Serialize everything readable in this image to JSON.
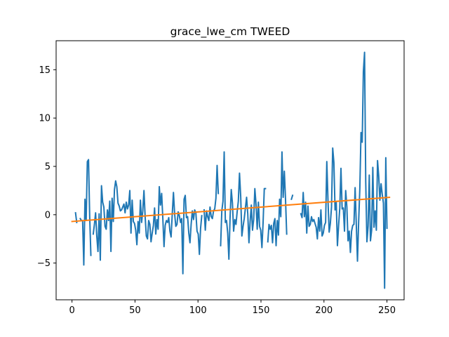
{
  "chart_data": {
    "type": "line",
    "title": "grace_lwe_cm TWEED",
    "xlabel": "",
    "ylabel": "",
    "xlim": [
      -12.6,
      263.6
    ],
    "ylim": [
      -8.8,
      18.0
    ],
    "xticks": [
      0,
      50,
      100,
      150,
      200,
      250
    ],
    "yticks": [
      -5,
      0,
      5,
      10,
      15
    ],
    "grid": false,
    "series": [
      {
        "color": "#1f77b4",
        "values": [
          [
            3,
            0.2
          ],
          [
            4,
            -0.8
          ],
          [
            5,
            null
          ],
          [
            6,
            null
          ],
          [
            7,
            -0.4
          ],
          [
            8,
            -0.6
          ],
          [
            9,
            -0.6
          ],
          [
            10,
            -5.2
          ],
          [
            11,
            1.6
          ],
          [
            12,
            -0.6
          ],
          [
            13,
            5.5
          ],
          [
            14,
            5.7
          ],
          [
            15,
            -0.2
          ],
          [
            16,
            -4.2
          ],
          [
            17,
            null
          ],
          [
            18,
            -2.0
          ],
          [
            19,
            -1.0
          ],
          [
            20,
            0.2
          ],
          [
            21,
            -2.2
          ],
          [
            22,
            -3.8
          ],
          [
            23,
            0.1
          ],
          [
            24,
            -4.7
          ],
          [
            25,
            3.0
          ],
          [
            26,
            1.3
          ],
          [
            27,
            0.8
          ],
          [
            28,
            -1.2
          ],
          [
            29,
            -1.5
          ],
          [
            30,
            0.5
          ],
          [
            31,
            -0.6
          ],
          [
            32,
            1.4
          ],
          [
            33,
            -3.8
          ],
          [
            34,
            1.7
          ],
          [
            35,
            -0.7
          ],
          [
            36,
            2.6
          ],
          [
            37,
            3.5
          ],
          [
            38,
            2.9
          ],
          [
            39,
            1.2
          ],
          [
            40,
            0.9
          ],
          [
            41,
            0.4
          ],
          [
            42,
            0.5
          ],
          [
            43,
            0.8
          ],
          [
            44,
            1.1
          ],
          [
            45,
            0.2
          ],
          [
            46,
            1.3
          ],
          [
            47,
            0.6
          ],
          [
            48,
            1.0
          ],
          [
            49,
            2.5
          ],
          [
            50,
            -1.9
          ],
          [
            51,
            1.5
          ],
          [
            52,
            -0.7
          ],
          [
            53,
            -0.9
          ],
          [
            54,
            -1.6
          ],
          [
            55,
            -3.1
          ],
          [
            56,
            -0.7
          ],
          [
            57,
            -1.9
          ],
          [
            58,
            1.5
          ],
          [
            59,
            -0.8
          ],
          [
            60,
            0.4
          ],
          [
            61,
            2.5
          ],
          [
            62,
            -0.2
          ],
          [
            63,
            -2.2
          ],
          [
            64,
            -2.5
          ],
          [
            65,
            -0.6
          ],
          [
            66,
            -1.0
          ],
          [
            67,
            -2.8
          ],
          [
            68,
            -1.9
          ],
          [
            69,
            -1.1
          ],
          [
            70,
            0.7
          ],
          [
            71,
            -2.0
          ],
          [
            72,
            -0.5
          ],
          [
            73,
            -1.5
          ],
          [
            74,
            2.9
          ],
          [
            75,
            1.0
          ],
          [
            76,
            2.2
          ],
          [
            77,
            -0.4
          ],
          [
            78,
            -3.3
          ],
          [
            79,
            -1.1
          ],
          [
            80,
            -0.6
          ],
          [
            81,
            -0.8
          ],
          [
            82,
            -0.3
          ],
          [
            83,
            -1.7
          ],
          [
            84,
            -2.3
          ],
          [
            85,
            0.1
          ],
          [
            86,
            2.3
          ],
          [
            87,
            0.1
          ],
          [
            88,
            -1.2
          ],
          [
            89,
            -1.0
          ],
          [
            90,
            0.3
          ],
          [
            91,
            -0.1
          ],
          [
            92,
            -0.8
          ],
          [
            93,
            -0.4
          ],
          [
            94,
            -6.1
          ],
          [
            95,
            1.6
          ],
          [
            96,
            2.0
          ],
          [
            97,
            -0.3
          ],
          [
            98,
            -0.2
          ],
          [
            99,
            -1.9
          ],
          [
            100,
            -2.9
          ],
          [
            101,
            -1.0
          ],
          [
            102,
            0.4
          ],
          [
            103,
            -0.5
          ],
          [
            104,
            0.5
          ],
          [
            105,
            0.2
          ],
          [
            106,
            -1.7
          ],
          [
            107,
            -2.0
          ],
          [
            108,
            -4.1
          ],
          [
            109,
            -1.4
          ],
          [
            110,
            -0.1
          ],
          [
            111,
            null
          ],
          [
            112,
            0.5
          ],
          [
            113,
            -1.6
          ],
          [
            114,
            0.4
          ],
          [
            115,
            -0.2
          ],
          [
            116,
            -0.6
          ],
          [
            117,
            0.8
          ],
          [
            118,
            -0.2
          ],
          [
            119,
            -0.4
          ],
          [
            120,
            0.4
          ],
          [
            121,
            0.6
          ],
          [
            122,
            1.7
          ],
          [
            123,
            5.1
          ],
          [
            124,
            2.2
          ],
          [
            125,
            null
          ],
          [
            126,
            -3.2
          ],
          [
            127,
            0.4
          ],
          [
            128,
            1.4
          ],
          [
            129,
            6.5
          ],
          [
            130,
            -0.8
          ],
          [
            131,
            -0.6
          ],
          [
            132,
            -1.9
          ],
          [
            133,
            -4.6
          ],
          [
            134,
            -0.3
          ],
          [
            135,
            2.6
          ],
          [
            136,
            1.2
          ],
          [
            137,
            -1.7
          ],
          [
            138,
            -0.5
          ],
          [
            139,
            -1.0
          ],
          [
            140,
            0.3
          ],
          [
            141,
            1.4
          ],
          [
            142,
            4.3
          ],
          [
            143,
            1.9
          ],
          [
            144,
            -2.2
          ],
          [
            145,
            -1.2
          ],
          [
            146,
            -0.4
          ],
          [
            147,
            0.7
          ],
          [
            148,
            1.8
          ],
          [
            149,
            0.1
          ],
          [
            150,
            -2.9
          ],
          [
            151,
            -0.7
          ],
          [
            152,
            1.0
          ],
          [
            153,
            -1.6
          ],
          [
            154,
            -0.5
          ],
          [
            155,
            2.7
          ],
          [
            156,
            1.1
          ],
          [
            157,
            -1.5
          ],
          [
            158,
            1.3
          ],
          [
            159,
            -1.2
          ],
          [
            160,
            -1.6
          ],
          [
            161,
            -3.4
          ],
          [
            162,
            -0.8
          ],
          [
            163,
            2.7
          ],
          [
            164,
            2.7
          ],
          [
            165,
            null
          ],
          [
            166,
            -2.8
          ],
          [
            167,
            -1.0
          ],
          [
            168,
            -1.5
          ],
          [
            169,
            -1.1
          ],
          [
            170,
            -2.9
          ],
          [
            171,
            -0.9
          ],
          [
            172,
            -0.4
          ],
          [
            173,
            -3.2
          ],
          [
            174,
            -0.6
          ],
          [
            175,
            -2.1
          ],
          [
            176,
            1.6
          ],
          [
            177,
            -0.2
          ],
          [
            178,
            6.5
          ],
          [
            179,
            1.8
          ],
          [
            180,
            4.5
          ],
          [
            181,
            1.6
          ],
          [
            182,
            -2.0
          ],
          [
            183,
            null
          ],
          [
            184,
            null
          ],
          [
            185,
            null
          ],
          [
            186,
            1.6
          ],
          [
            187,
            2.0
          ],
          [
            188,
            null
          ],
          [
            189,
            null
          ],
          [
            190,
            null
          ],
          [
            191,
            null
          ],
          [
            192,
            null
          ],
          [
            193,
            null
          ],
          [
            194,
            0.1
          ],
          [
            195,
            -0.3
          ],
          [
            196,
            2.3
          ],
          [
            197,
            -0.2
          ],
          [
            198,
            1.3
          ],
          [
            199,
            -1.9
          ],
          [
            200,
            0.9
          ],
          [
            201,
            -1.2
          ],
          [
            202,
            -1.0
          ],
          [
            203,
            -0.2
          ],
          [
            204,
            -0.7
          ],
          [
            205,
            -0.5
          ],
          [
            206,
            -0.9
          ],
          [
            207,
            -1.3
          ],
          [
            208,
            -2.5
          ],
          [
            209,
            -0.3
          ],
          [
            210,
            -1.7
          ],
          [
            211,
            0.5
          ],
          [
            212,
            -2.2
          ],
          [
            213,
            -1.9
          ],
          [
            214,
            -1.1
          ],
          [
            215,
            -0.8
          ],
          [
            216,
            5.5
          ],
          [
            217,
            1.5
          ],
          [
            218,
            -1.8
          ],
          [
            219,
            -0.9
          ],
          [
            220,
            0.8
          ],
          [
            221,
            6.9
          ],
          [
            222,
            5.4
          ],
          [
            223,
            0.5
          ],
          [
            224,
            1.3
          ],
          [
            225,
            -3.2
          ],
          [
            226,
            -1.1
          ],
          [
            227,
            0.7
          ],
          [
            228,
            4.8
          ],
          [
            229,
            0.6
          ],
          [
            230,
            0.7
          ],
          [
            231,
            -1.7
          ],
          [
            232,
            2.5
          ],
          [
            233,
            0.8
          ],
          [
            234,
            -2.7
          ],
          [
            235,
            -1.7
          ],
          [
            236,
            -3.9
          ],
          [
            237,
            -1.7
          ],
          [
            238,
            -1.1
          ],
          [
            239,
            -1.0
          ],
          [
            240,
            2.8
          ],
          [
            241,
            -1.0
          ],
          [
            242,
            -4.8
          ],
          [
            243,
            -0.7
          ],
          [
            244,
            2.7
          ],
          [
            245,
            8.5
          ],
          [
            246,
            7.5
          ],
          [
            247,
            14.8
          ],
          [
            248,
            16.8
          ],
          [
            249,
            3.4
          ],
          [
            250,
            -2.8
          ],
          [
            251,
            -1.2
          ],
          [
            252,
            4.1
          ],
          [
            253,
            -2.7
          ],
          [
            254,
            -1.6
          ],
          [
            255,
            4.9
          ],
          [
            256,
            -1.3
          ],
          [
            257,
            0.4
          ],
          [
            258,
            -1.6
          ],
          [
            259,
            5.6
          ],
          [
            260,
            4.0
          ],
          [
            261,
            1.5
          ],
          [
            262,
            3.2
          ],
          [
            263,
            2.1
          ],
          [
            264,
            1.2
          ],
          [
            265,
            -7.6
          ],
          [
            266,
            5.9
          ],
          [
            267,
            -1.4
          ]
        ]
      },
      {
        "color": "#ff7f0e",
        "values": [
          [
            0,
            -0.7
          ],
          [
            252,
            1.8
          ]
        ]
      }
    ]
  }
}
